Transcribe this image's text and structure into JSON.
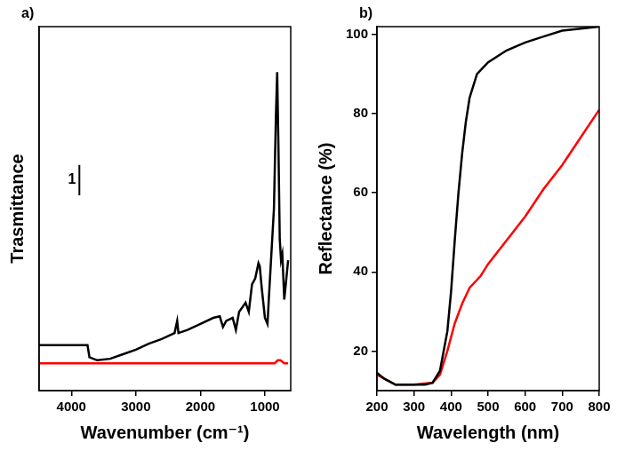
{
  "chart_data": [
    {
      "type": "line",
      "label": "a)",
      "x_label": "Wavenumber (cm⁻¹)",
      "y_label": "Trasmittance",
      "xlim": [
        4500,
        600
      ],
      "xticks": [
        4000,
        3000,
        2000,
        1000
      ],
      "ylim": [
        0,
        12
      ],
      "tick_labels": "x",
      "grid": false,
      "annotations": [
        {
          "text": "1",
          "length": 1
        }
      ],
      "series": [
        {
          "color": "#000000",
          "x": [
            4500,
            3800,
            3750,
            3720,
            3600,
            3400,
            3200,
            3000,
            2800,
            2600,
            2400,
            2360,
            2340,
            2200,
            2000,
            1800,
            1700,
            1650,
            1600,
            1500,
            1450,
            1400,
            1300,
            1250,
            1200,
            1150,
            1100,
            1080,
            1050,
            1000,
            960,
            940,
            900,
            860,
            830,
            810,
            790,
            770,
            750,
            730,
            700,
            640
          ],
          "values": [
            1.5,
            1.5,
            1.5,
            1.1,
            1.0,
            1.05,
            1.2,
            1.35,
            1.55,
            1.7,
            1.9,
            2.3,
            1.9,
            2.0,
            2.2,
            2.4,
            2.45,
            2.1,
            2.3,
            2.4,
            2.0,
            2.6,
            2.9,
            2.6,
            3.5,
            3.7,
            4.2,
            4.1,
            3.4,
            2.4,
            2.2,
            3.0,
            4.5,
            6.0,
            9.0,
            10.5,
            8.0,
            5.0,
            4.3,
            4.5,
            3.0,
            4.3
          ]
        },
        {
          "color": "#ff0000",
          "x": [
            4500,
            3000,
            2000,
            1000,
            850,
            800,
            760,
            700,
            640
          ],
          "values": [
            0.9,
            0.9,
            0.9,
            0.9,
            0.9,
            1.0,
            1.0,
            0.9,
            0.9
          ]
        }
      ]
    },
    {
      "type": "line",
      "label": "b)",
      "x_label": "Wavelength (nm)",
      "y_label": "Reflectance (%)",
      "xlim": [
        200,
        800
      ],
      "xticks": [
        200,
        300,
        400,
        500,
        600,
        700,
        800
      ],
      "ylim": [
        10,
        102
      ],
      "yticks": [
        20,
        40,
        60,
        80,
        100
      ],
      "grid": false,
      "series": [
        {
          "color": "#000000",
          "x": [
            200,
            220,
            250,
            300,
            330,
            350,
            370,
            390,
            400,
            410,
            420,
            430,
            440,
            450,
            470,
            500,
            550,
            600,
            650,
            700,
            750,
            800
          ],
          "values": [
            14.5,
            13,
            11.5,
            11.5,
            11.5,
            12,
            15,
            25,
            35,
            48,
            60,
            70,
            78,
            84,
            90,
            93,
            96,
            98,
            99.5,
            101,
            101.5,
            102
          ]
        },
        {
          "color": "#ff0000",
          "x": [
            200,
            250,
            300,
            350,
            370,
            390,
            410,
            430,
            450,
            480,
            500,
            550,
            600,
            650,
            700,
            750,
            800
          ],
          "values": [
            14,
            11.5,
            11.5,
            12,
            14,
            20,
            27,
            32,
            36,
            39,
            42,
            48,
            54,
            61,
            67,
            74,
            81
          ]
        }
      ]
    }
  ]
}
